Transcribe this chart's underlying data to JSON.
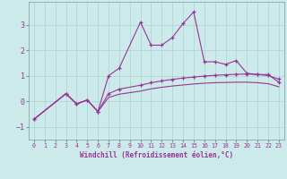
{
  "xlabel": "Windchill (Refroidissement éolien,°C)",
  "background_color": "#cdeaea",
  "grid_color": "#aad4d4",
  "line_color": "#993399",
  "spine_color": "#7799aa",
  "xlim": [
    -0.5,
    23.5
  ],
  "ylim": [
    -1.5,
    3.9
  ],
  "yticks": [
    -1,
    0,
    1,
    2,
    3
  ],
  "xticks": [
    0,
    1,
    2,
    3,
    4,
    5,
    6,
    7,
    8,
    9,
    10,
    11,
    12,
    13,
    14,
    15,
    16,
    17,
    18,
    19,
    20,
    21,
    22,
    23
  ],
  "series1_x": [
    0,
    3,
    4,
    5,
    6,
    7,
    8,
    10,
    11,
    12,
    13,
    14,
    15,
    16,
    17,
    18,
    19,
    20,
    21,
    22,
    23
  ],
  "series1_y": [
    -0.7,
    0.3,
    -0.1,
    0.05,
    -0.4,
    1.0,
    1.3,
    3.1,
    2.2,
    2.2,
    2.5,
    3.05,
    3.5,
    1.55,
    1.55,
    1.45,
    1.6,
    1.1,
    1.05,
    1.05,
    0.75
  ],
  "series2_x": [
    0,
    3,
    4,
    5,
    6,
    7,
    8,
    10,
    11,
    12,
    13,
    14,
    15,
    16,
    17,
    18,
    19,
    20,
    21,
    22,
    23
  ],
  "series2_y": [
    -0.7,
    0.3,
    -0.1,
    0.05,
    -0.4,
    0.3,
    0.48,
    0.63,
    0.73,
    0.8,
    0.86,
    0.91,
    0.95,
    0.99,
    1.02,
    1.04,
    1.06,
    1.07,
    1.05,
    1.01,
    0.87
  ],
  "series3_x": [
    0,
    3,
    4,
    5,
    6,
    7,
    8,
    10,
    11,
    12,
    13,
    14,
    15,
    16,
    17,
    18,
    19,
    20,
    21,
    22,
    23
  ],
  "series3_y": [
    -0.7,
    0.3,
    -0.1,
    0.05,
    -0.4,
    0.15,
    0.28,
    0.4,
    0.49,
    0.55,
    0.6,
    0.64,
    0.68,
    0.71,
    0.73,
    0.74,
    0.75,
    0.75,
    0.73,
    0.69,
    0.57
  ]
}
